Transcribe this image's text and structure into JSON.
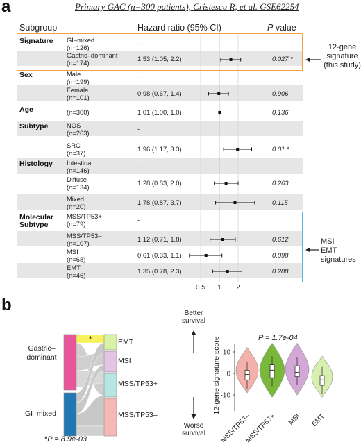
{
  "panel_a": {
    "letter": "a",
    "caption": "Primary GAC (n=300 patients), Cristescu R, et al. GSE62254",
    "headers": {
      "subgroup": "Subgroup",
      "hr": "Hazard ratio (95% CI)",
      "p": "P",
      "p_suffix": " value"
    },
    "axis_ticks": [
      "0.5",
      "1",
      "2"
    ],
    "rows": [
      {
        "group": "Signature",
        "sub": "GI–mixed",
        "n": "(n=126)",
        "hr_text": "-",
        "p": ""
      },
      {
        "group": "",
        "sub": "Gastric–dominant",
        "n": "(n=174)",
        "hr_text": "1.53 (1.05, 2.2)",
        "p": "0.027 *"
      },
      {
        "group": "Sex",
        "sub": "Male",
        "n": "(n=199)",
        "hr_text": "-",
        "p": ""
      },
      {
        "group": "",
        "sub": "Female",
        "n": "(n=101)",
        "hr_text": "0.98 (0.67, 1.4)",
        "p": "0.906"
      },
      {
        "group": "Age",
        "sub": "",
        "n": "(n=300)",
        "hr_text": "1.01 (1.00, 1.0)",
        "p": "0.136"
      },
      {
        "group": "Subtype",
        "sub": "NOS",
        "n": "(n=263)",
        "hr_text": "-",
        "p": ""
      },
      {
        "group": "",
        "sub": "SRC",
        "n": "(n=37)",
        "hr_text": "1.96 (1.17, 3.3)",
        "p": "0.01 *"
      },
      {
        "group": "Histology",
        "sub": "Intestinal",
        "n": "(n=146)",
        "hr_text": "-",
        "p": ""
      },
      {
        "group": "",
        "sub": "Diffuse",
        "n": "(n=134)",
        "hr_text": "1.28 (0.83, 2.0)",
        "p": "0.263"
      },
      {
        "group": "",
        "sub": "Mixed",
        "n": "(n=20)",
        "hr_text": "1.78 (0.87, 3.7)",
        "p": "0.115"
      },
      {
        "group": "Molecular",
        "group2": "Subtype",
        "sub": "MSS/TP53+",
        "n": "(n=79)",
        "hr_text": "-",
        "p": ""
      },
      {
        "group": "",
        "sub": "MSS/TP53–",
        "n": "(n=107)",
        "hr_text": "1.12 (0.71, 1.8)",
        "p": "0.612"
      },
      {
        "group": "",
        "sub": "MSI",
        "n": "(n=68)",
        "hr_text": "0.61 (0.33, 1.1)",
        "p": "0.098"
      },
      {
        "group": "",
        "sub": "EMT",
        "n": "(n=46)",
        "hr_text": "1.35 (0.78, 2.3)",
        "p": "0.288"
      }
    ],
    "annotations": {
      "sig_line1": "12-gene",
      "sig_line2": "signature",
      "sig_line3": "(this study)",
      "mol_line1": "MSI",
      "mol_line2": "EMT",
      "mol_line3": "signatures"
    },
    "colors": {
      "orange_box": "#f0a040",
      "blue_box": "#5bb5e0",
      "stripe": "#e6e6e6"
    }
  },
  "panel_b": {
    "letter": "b",
    "left_labels": {
      "gastric": "Gastric–",
      "gastric2": "dominant",
      "gi": "GI–mixed"
    },
    "right_labels": [
      "EMT",
      "MSI",
      "MSS/TP53+",
      "MSS/TP53–"
    ],
    "flow_star": "*",
    "p_note_star": "*",
    "p_note_text": "P = 8.9e-03",
    "better": "Better",
    "better2": "survival",
    "worse": "Worse",
    "worse2": "survival",
    "violin_p": "P = 1.7e-04",
    "y_label": "12-gene signature score",
    "y_ticks": [
      "10",
      "0",
      "-10"
    ],
    "x_labels": [
      "MSS/TP53–",
      "MSS/TP53+",
      "MSI",
      "EMT"
    ],
    "colors": {
      "gastric": "#e8559b",
      "gi": "#1f78b4",
      "emt": "#d9f2a8",
      "msi": "#e4c4e4",
      "mss_pos": "#b7e6e2",
      "mss_neg": "#f7b8b5",
      "star_band": "#f7f25a",
      "v_mssneg": "#f6b0ab",
      "v_msspos": "#7ab83a",
      "v_msi": "#d3a8d6",
      "v_emt": "#d7f0b0"
    }
  },
  "chart_data": {
    "type": "forest",
    "title": "Primary GAC (n=300 patients), Cristescu R, et al. GSE62254",
    "xlabel": "Hazard ratio (95% CI)",
    "x_scale": "log",
    "x_ticks": [
      0.5,
      1,
      2
    ],
    "reference_line": 1,
    "categories": [
      "Gastric–dominant",
      "Female",
      "Age",
      "SRC",
      "Diffuse",
      "Mixed",
      "MSS/TP53–",
      "MSI",
      "EMT"
    ],
    "hr": [
      1.53,
      0.98,
      1.01,
      1.96,
      1.28,
      1.78,
      1.12,
      0.61,
      1.35
    ],
    "lower": [
      1.05,
      0.67,
      1.0,
      1.17,
      0.83,
      0.87,
      0.71,
      0.33,
      0.78
    ],
    "upper": [
      2.2,
      1.4,
      1.0,
      3.3,
      2.0,
      3.7,
      1.8,
      1.1,
      2.3
    ],
    "p_values": [
      0.027,
      0.906,
      0.136,
      0.01,
      0.263,
      0.115,
      0.612,
      0.098,
      0.288
    ]
  }
}
